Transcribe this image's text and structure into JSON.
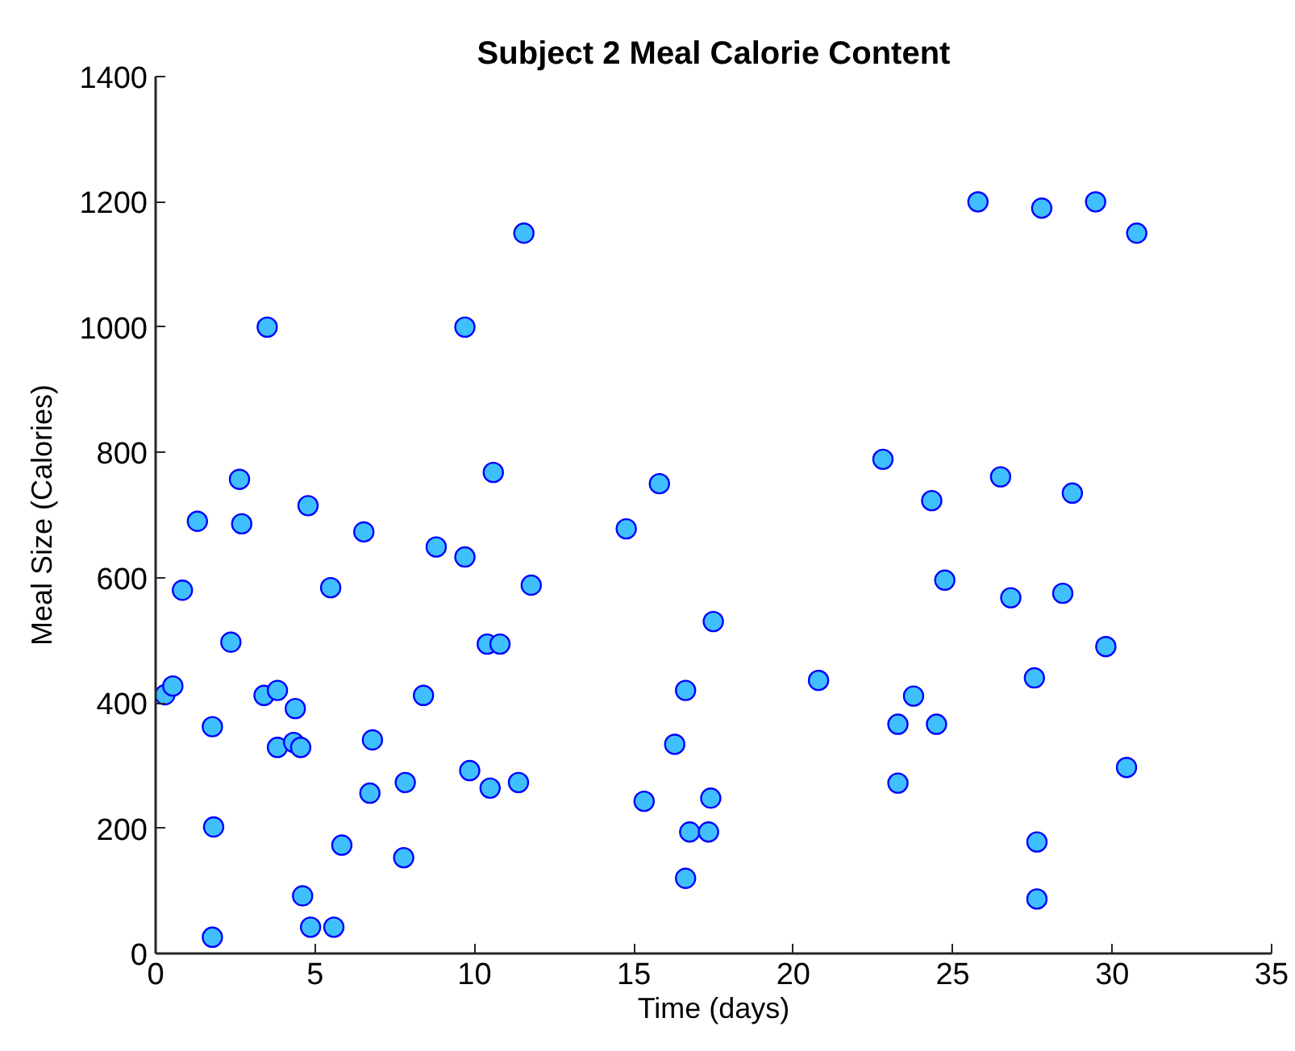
{
  "chart_data": {
    "type": "scatter",
    "title": "Subject 2 Meal Calorie Content",
    "xlabel": "Time (days)",
    "ylabel": "Meal Size (Calories)",
    "xlim": [
      0,
      35
    ],
    "ylim": [
      0,
      1400
    ],
    "xticks": [
      0,
      5,
      10,
      15,
      20,
      25,
      30,
      35
    ],
    "yticks": [
      0,
      200,
      400,
      600,
      800,
      1000,
      1200,
      1400
    ],
    "grid": false,
    "marker": "circle",
    "series": [
      {
        "color": "#40bfff",
        "x": [
          0.29,
          0.54,
          0.84,
          1.31,
          1.78,
          1.82,
          1.78,
          2.36,
          2.63,
          2.7,
          3.5,
          3.4,
          3.82,
          3.82,
          4.38,
          4.33,
          4.55,
          4.61,
          4.86,
          4.78,
          5.49,
          5.59,
          5.84,
          6.53,
          6.8,
          6.72,
          7.78,
          7.83,
          8.4,
          8.8,
          9.7,
          9.7,
          9.85,
          10.59,
          10.4,
          10.8,
          10.49,
          11.38,
          11.55,
          11.78,
          14.76,
          15.8,
          15.32,
          17.49,
          16.62,
          16.28,
          17.41,
          16.75,
          17.34,
          16.62,
          20.79,
          22.81,
          24.34,
          25.79,
          27.79,
          29.48,
          30.77,
          26.5,
          28.75,
          24.75,
          26.82,
          28.45,
          29.8,
          27.56,
          23.77,
          23.28,
          24.49,
          30.45,
          23.28,
          27.64,
          27.64
        ],
        "values": [
          413,
          427,
          580,
          690,
          362,
          202,
          26,
          497,
          757,
          686,
          1000,
          412,
          420,
          329,
          391,
          337,
          329,
          92,
          42,
          715,
          584,
          42,
          173,
          673,
          341,
          256,
          153,
          273,
          412,
          649,
          633,
          1000,
          292,
          768,
          494,
          494,
          264,
          273,
          1150,
          588,
          678,
          750,
          243,
          530,
          420,
          334,
          248,
          194,
          194,
          120,
          436,
          789,
          723,
          1200,
          1190,
          1200,
          1150,
          761,
          735,
          596,
          568,
          575,
          490,
          440,
          411,
          366,
          366,
          297,
          272,
          178,
          87
        ]
      }
    ]
  }
}
